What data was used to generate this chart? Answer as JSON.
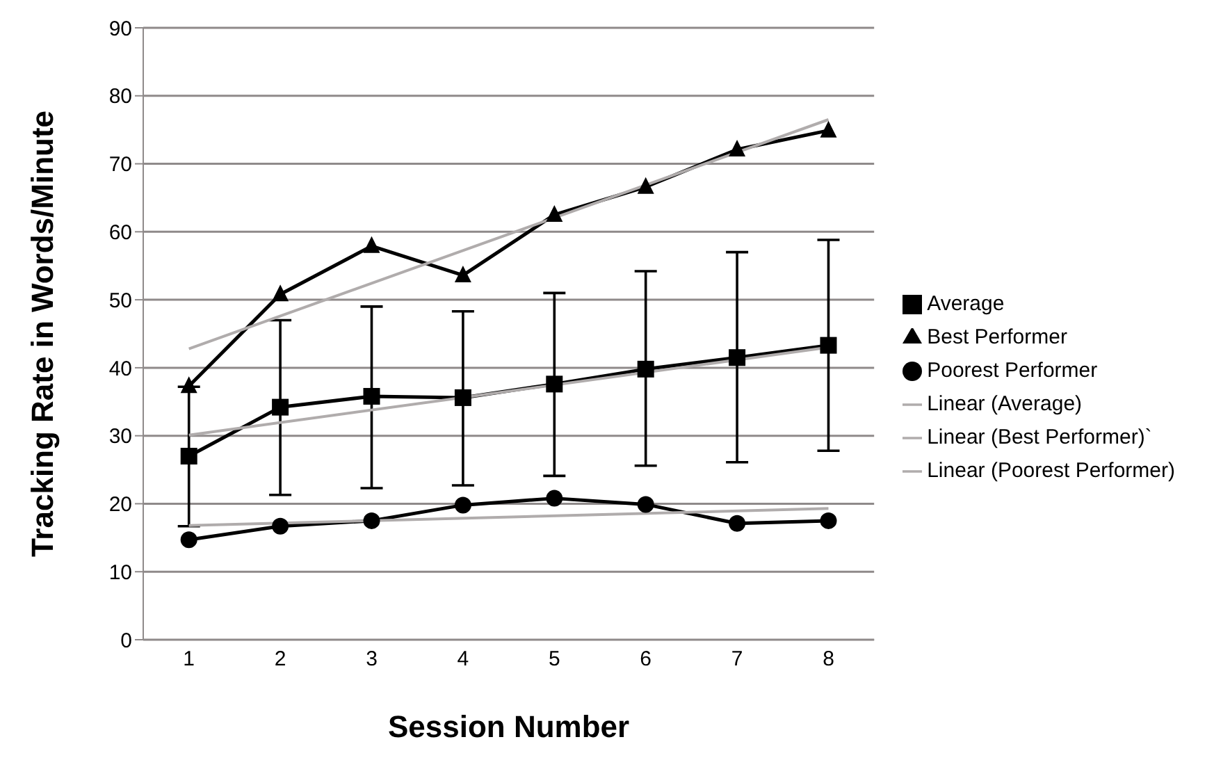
{
  "chart_data": {
    "type": "line",
    "xlabel": "Session Number",
    "ylabel": "Tracking Rate in Words/Minute",
    "categories": [
      "1",
      "2",
      "3",
      "4",
      "5",
      "6",
      "7",
      "8"
    ],
    "ylim": [
      0,
      90
    ],
    "yticks": [
      0,
      10,
      20,
      30,
      40,
      50,
      60,
      70,
      80,
      90
    ],
    "grid": "y",
    "legend": "right",
    "line_style": "solid",
    "series": [
      {
        "name": "Average",
        "color": "#000000",
        "marker": "square",
        "values": [
          27,
          34.2,
          35.8,
          35.6,
          37.6,
          39.8,
          41.5,
          43.3
        ],
        "errors": [
          [
            16.7,
            37.2
          ],
          [
            21.3,
            47
          ],
          [
            22.3,
            49
          ],
          [
            22.7,
            48.3
          ],
          [
            24.1,
            51
          ],
          [
            25.6,
            54.2
          ],
          [
            26.1,
            57
          ],
          [
            27.8,
            58.8
          ]
        ]
      },
      {
        "name": "Best Performer",
        "color": "#000000",
        "marker": "triangle",
        "values": [
          37.3,
          50.8,
          57.9,
          53.6,
          62.5,
          66.6,
          72.1,
          74.9
        ]
      },
      {
        "name": "Poorest Performer",
        "color": "#000000",
        "marker": "circle",
        "values": [
          14.7,
          16.7,
          17.5,
          19.8,
          20.8,
          19.9,
          17.1,
          17.5
        ]
      },
      {
        "name": "Linear (Average)",
        "color": "#b0acac",
        "marker": "none",
        "x": [
          "1",
          "8"
        ],
        "values": [
          30.1,
          43
        ]
      },
      {
        "name": "Linear (Best Performer)`",
        "color": "#b0acac",
        "marker": "none",
        "x": [
          "1",
          "8"
        ],
        "values": [
          42.8,
          76.5
        ]
      },
      {
        "name": "Linear (Poorest Performer)",
        "color": "#b0acac",
        "marker": "none",
        "x": [
          "1",
          "8"
        ],
        "values": [
          16.8,
          19.3
        ]
      }
    ]
  }
}
